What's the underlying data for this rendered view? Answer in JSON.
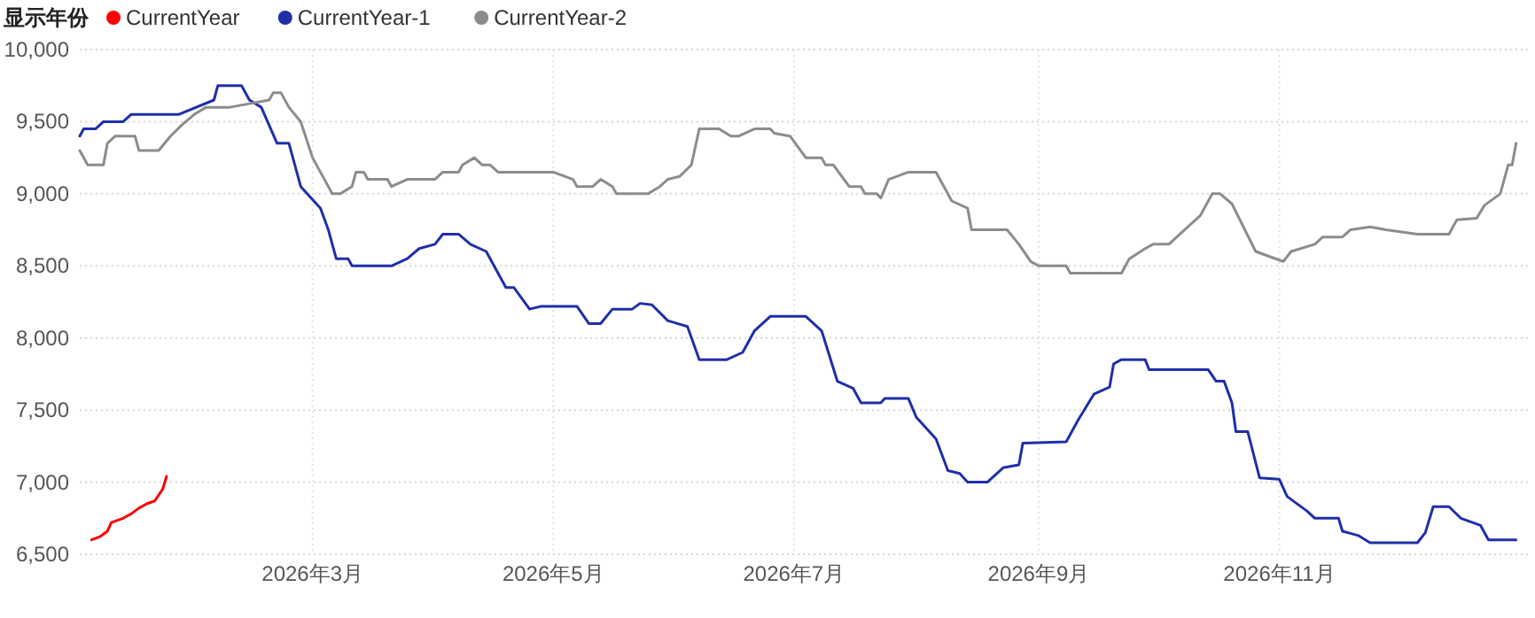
{
  "chart_data": {
    "type": "line",
    "legend_title": "显示年份",
    "legend": "top left",
    "grid": true,
    "xlim": [
      "2026-01-01",
      "2027-01-03"
    ],
    "xticks": [
      {
        "value": "2026-03-01",
        "label": "2026年3月"
      },
      {
        "value": "2026-05-01",
        "label": "2026年5月"
      },
      {
        "value": "2026-07-01",
        "label": "2026年7月"
      },
      {
        "value": "2026-09-01",
        "label": "2026年9月"
      },
      {
        "value": "2026-11-01",
        "label": "2026年11月"
      }
    ],
    "ylim": [
      6500,
      10000
    ],
    "yticks": [
      {
        "value": 6500,
        "label": "6,500"
      },
      {
        "value": 7000,
        "label": "7,000"
      },
      {
        "value": 7500,
        "label": "7,500"
      },
      {
        "value": 8000,
        "label": "8,000"
      },
      {
        "value": 8500,
        "label": "8,500"
      },
      {
        "value": 9000,
        "label": "9,000"
      },
      {
        "value": 9500,
        "label": "9,500"
      },
      {
        "value": 10000,
        "label": "10,000"
      }
    ],
    "series": [
      {
        "name": "CurrentYear",
        "color": "#ff0000",
        "x": [
          "2026-01-04",
          "2026-01-06",
          "2026-01-08",
          "2026-01-09",
          "2026-01-12",
          "2026-01-14",
          "2026-01-16",
          "2026-01-18",
          "2026-01-20",
          "2026-01-22",
          "2026-01-23"
        ],
        "values": [
          6600,
          6620,
          6660,
          6720,
          6750,
          6780,
          6820,
          6850,
          6870,
          6950,
          7040
        ]
      },
      {
        "name": "CurrentYear-1",
        "color": "#1f2fa8",
        "x": [
          "2026-01-01",
          "2026-01-02",
          "2026-01-05",
          "2026-01-07",
          "2026-01-12",
          "2026-01-14",
          "2026-01-26",
          "2026-02-04",
          "2026-02-05",
          "2026-02-11",
          "2026-02-13",
          "2026-02-16",
          "2026-02-20",
          "2026-02-23",
          "2026-02-26",
          "2026-03-03",
          "2026-03-05",
          "2026-03-07",
          "2026-03-10",
          "2026-03-11",
          "2026-03-21",
          "2026-03-25",
          "2026-03-28",
          "2026-04-01",
          "2026-04-03",
          "2026-04-07",
          "2026-04-10",
          "2026-04-14",
          "2026-04-17",
          "2026-04-19",
          "2026-04-21",
          "2026-04-25",
          "2026-04-28",
          "2026-05-07",
          "2026-05-10",
          "2026-05-13",
          "2026-05-16",
          "2026-05-21",
          "2026-05-23",
          "2026-05-26",
          "2026-05-30",
          "2026-06-04",
          "2026-06-07",
          "2026-06-14",
          "2026-06-18",
          "2026-06-21",
          "2026-06-25",
          "2026-07-04",
          "2026-07-08",
          "2026-07-12",
          "2026-07-16",
          "2026-07-18",
          "2026-07-23",
          "2026-07-24",
          "2026-07-30",
          "2026-08-01",
          "2026-08-06",
          "2026-08-09",
          "2026-08-12",
          "2026-08-14",
          "2026-08-19",
          "2026-08-23",
          "2026-08-27",
          "2026-08-28",
          "2026-09-08",
          "2026-09-11",
          "2026-09-15",
          "2026-09-19",
          "2026-09-20",
          "2026-09-22",
          "2026-09-28",
          "2026-09-29",
          "2026-10-14",
          "2026-10-16",
          "2026-10-18",
          "2026-10-20",
          "2026-10-21",
          "2026-10-24",
          "2026-10-27",
          "2026-11-01",
          "2026-11-03",
          "2026-11-08",
          "2026-11-10",
          "2026-11-16",
          "2026-11-17",
          "2026-11-21",
          "2026-11-24",
          "2026-12-06",
          "2026-12-08",
          "2026-12-10",
          "2026-12-14",
          "2026-12-17",
          "2026-12-22",
          "2026-12-24",
          "2026-12-31"
        ],
        "values": [
          9400,
          9450,
          9450,
          9500,
          9500,
          9550,
          9550,
          9650,
          9750,
          9750,
          9650,
          9600,
          9350,
          9350,
          9050,
          8900,
          8750,
          8550,
          8550,
          8500,
          8500,
          8550,
          8620,
          8650,
          8720,
          8720,
          8650,
          8600,
          8450,
          8350,
          8350,
          8200,
          8220,
          8220,
          8100,
          8100,
          8200,
          8200,
          8240,
          8230,
          8120,
          8080,
          7850,
          7850,
          7900,
          8050,
          8150,
          8150,
          8050,
          7700,
          7650,
          7550,
          7550,
          7580,
          7580,
          7450,
          7300,
          7080,
          7060,
          7000,
          7000,
          7100,
          7120,
          7270,
          7280,
          7430,
          7610,
          7660,
          7820,
          7850,
          7850,
          7780,
          7780,
          7700,
          7700,
          7550,
          7350,
          7350,
          7030,
          7020,
          6900,
          6800,
          6750,
          6750,
          6660,
          6630,
          6580,
          6580,
          6650,
          6830,
          6830,
          6750,
          6700,
          6600,
          6600
        ]
      },
      {
        "name": "CurrentYear-2",
        "color": "#8c8c8c",
        "x": [
          "2026-01-01",
          "2026-01-03",
          "2026-01-07",
          "2026-01-08",
          "2026-01-10",
          "2026-01-15",
          "2026-01-16",
          "2026-01-21",
          "2026-01-24",
          "2026-01-27",
          "2026-01-30",
          "2026-02-02",
          "2026-02-08",
          "2026-02-18",
          "2026-02-19",
          "2026-02-21",
          "2026-02-23",
          "2026-02-26",
          "2026-03-01",
          "2026-03-06",
          "2026-03-08",
          "2026-03-11",
          "2026-03-12",
          "2026-03-14",
          "2026-03-15",
          "2026-03-20",
          "2026-03-21",
          "2026-03-25",
          "2026-04-01",
          "2026-04-03",
          "2026-04-07",
          "2026-04-08",
          "2026-04-11",
          "2026-04-13",
          "2026-04-15",
          "2026-04-17",
          "2026-05-01",
          "2026-05-06",
          "2026-05-07",
          "2026-05-11",
          "2026-05-13",
          "2026-05-16",
          "2026-05-17",
          "2026-05-25",
          "2026-05-28",
          "2026-05-30",
          "2026-06-02",
          "2026-06-05",
          "2026-06-07",
          "2026-06-12",
          "2026-06-15",
          "2026-06-17",
          "2026-06-21",
          "2026-06-25",
          "2026-06-26",
          "2026-06-30",
          "2026-07-04",
          "2026-07-08",
          "2026-07-09",
          "2026-07-11",
          "2026-07-15",
          "2026-07-18",
          "2026-07-19",
          "2026-07-22",
          "2026-07-23",
          "2026-07-25",
          "2026-07-30",
          "2026-08-06",
          "2026-08-10",
          "2026-08-14",
          "2026-08-15",
          "2026-08-24",
          "2026-08-27",
          "2026-08-30",
          "2026-09-01",
          "2026-09-08",
          "2026-09-09",
          "2026-09-22",
          "2026-09-24",
          "2026-09-28",
          "2026-09-30",
          "2026-10-04",
          "2026-10-12",
          "2026-10-15",
          "2026-10-17",
          "2026-10-20",
          "2026-10-26",
          "2026-10-30",
          "2026-11-02",
          "2026-11-04",
          "2026-11-10",
          "2026-11-12",
          "2026-11-17",
          "2026-11-19",
          "2026-11-24",
          "2026-11-28",
          "2026-12-06",
          "2026-12-14",
          "2026-12-16",
          "2026-12-21",
          "2026-12-23",
          "2026-12-27",
          "2026-12-28",
          "2026-12-29",
          "2026-12-30",
          "2026-12-31"
        ],
        "values": [
          9300,
          9200,
          9200,
          9350,
          9400,
          9400,
          9300,
          9300,
          9400,
          9480,
          9550,
          9600,
          9600,
          9650,
          9700,
          9700,
          9600,
          9500,
          9250,
          9000,
          9000,
          9050,
          9150,
          9150,
          9100,
          9100,
          9050,
          9100,
          9100,
          9150,
          9150,
          9200,
          9250,
          9200,
          9200,
          9150,
          9150,
          9100,
          9050,
          9050,
          9100,
          9050,
          9000,
          9000,
          9050,
          9100,
          9120,
          9200,
          9450,
          9450,
          9400,
          9400,
          9450,
          9450,
          9420,
          9400,
          9250,
          9250,
          9200,
          9200,
          9050,
          9050,
          9000,
          9000,
          8970,
          9100,
          9150,
          9150,
          8950,
          8900,
          8750,
          8750,
          8650,
          8530,
          8500,
          8500,
          8450,
          8450,
          8550,
          8620,
          8650,
          8650,
          8850,
          9000,
          9000,
          8930,
          8600,
          8560,
          8530,
          8600,
          8650,
          8700,
          8700,
          8750,
          8770,
          8750,
          8720,
          8720,
          8820,
          8830,
          8920,
          9000,
          9100,
          9200,
          9200,
          9350
        ]
      }
    ]
  }
}
